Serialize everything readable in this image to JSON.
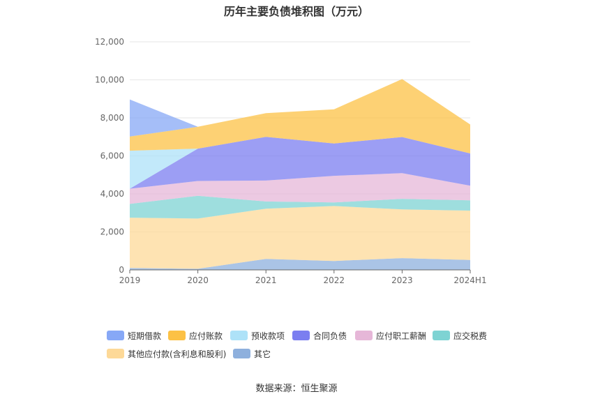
{
  "title": "历年主要负债堆积图（万元）",
  "source": "数据来源：恒生聚源",
  "chart_data": {
    "type": "area",
    "stacked": true,
    "title": "历年主要负债堆积图（万元）",
    "xlabel": "",
    "ylabel": "",
    "categories": [
      "2019",
      "2020",
      "2021",
      "2022",
      "2023",
      "2024H1"
    ],
    "ylim": [
      0,
      12000
    ],
    "yticks": [
      0,
      2000,
      4000,
      6000,
      8000,
      10000,
      12000
    ],
    "ytick_labels": [
      "0",
      "2,000",
      "4,000",
      "6,000",
      "8,000",
      "10,000",
      "12,000"
    ],
    "grid": true,
    "legend_position": "bottom",
    "series": [
      {
        "name": "其它",
        "color": "#8eb0dd",
        "values": [
          100,
          60,
          580,
          470,
          620,
          520
        ]
      },
      {
        "name": "其他应付款(含利息和股利)",
        "color": "#fdd998",
        "values": [
          2650,
          2640,
          2640,
          2890,
          2560,
          2600
        ]
      },
      {
        "name": "应交税费",
        "color": "#7ed3d3",
        "values": [
          720,
          1200,
          380,
          190,
          560,
          540
        ]
      },
      {
        "name": "应付职工薪酬",
        "color": "#e6b7d8",
        "values": [
          800,
          780,
          1100,
          1400,
          1350,
          770
        ]
      },
      {
        "name": "合同负债",
        "color": "#7b7ef0",
        "values": [
          0,
          1700,
          2300,
          1700,
          1900,
          1700
        ]
      },
      {
        "name": "预收款项",
        "color": "#aee2f8",
        "values": [
          2000,
          0,
          0,
          0,
          0,
          0
        ]
      },
      {
        "name": "应付账款",
        "color": "#fcc145",
        "values": [
          750,
          1150,
          1250,
          1800,
          3050,
          1520
        ]
      },
      {
        "name": "短期借款",
        "color": "#87a8f6",
        "values": [
          1950,
          0,
          0,
          0,
          0,
          0
        ]
      }
    ]
  },
  "legend": [
    {
      "name": "短期借款",
      "color": "#87a8f6"
    },
    {
      "name": "应付账款",
      "color": "#fcc145"
    },
    {
      "name": "预收款项",
      "color": "#aee2f8"
    },
    {
      "name": "合同负债",
      "color": "#7b7ef0"
    },
    {
      "name": "应付职工薪酬",
      "color": "#e6b7d8"
    },
    {
      "name": "应交税费",
      "color": "#7ed3d3"
    },
    {
      "name": "其他应付款(含利息和股利)",
      "color": "#fdd998"
    },
    {
      "name": "其它",
      "color": "#8eb0dd"
    }
  ]
}
